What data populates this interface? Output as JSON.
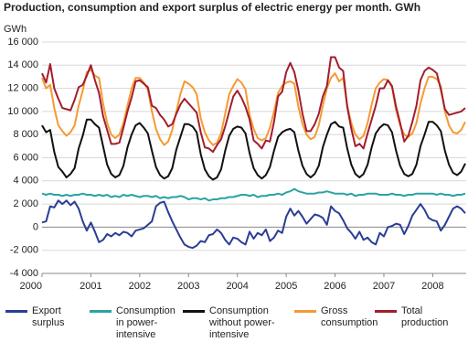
{
  "chart_data": {
    "type": "line",
    "title": "Production, consumption and export surplus of electric energy per month. GWh",
    "y_label": "GWh",
    "categories": [
      "2000",
      null,
      null,
      null,
      null,
      null,
      null,
      null,
      null,
      null,
      null,
      null,
      "2001",
      null,
      null,
      null,
      null,
      null,
      null,
      null,
      null,
      null,
      null,
      null,
      "2002",
      null,
      null,
      null,
      null,
      null,
      null,
      null,
      null,
      null,
      null,
      null,
      "2003",
      null,
      null,
      null,
      null,
      null,
      null,
      null,
      null,
      null,
      null,
      null,
      "2004",
      null,
      null,
      null,
      null,
      null,
      null,
      null,
      null,
      null,
      null,
      null,
      "2005",
      null,
      null,
      null,
      null,
      null,
      null,
      null,
      null,
      null,
      null,
      null,
      "2006",
      null,
      null,
      null,
      null,
      null,
      null,
      null,
      null,
      null,
      null,
      null,
      "2007",
      null,
      null,
      null,
      null,
      null,
      null,
      null,
      null,
      null,
      null,
      null,
      "2008",
      null,
      null,
      null,
      null,
      null,
      null,
      null,
      null
    ],
    "ylim": [
      -4000,
      16000
    ],
    "yticks": [
      {
        "value": -4000,
        "label": "-4 000"
      },
      {
        "value": -2000,
        "label": "-2 000"
      },
      0,
      {
        "value": 2000,
        "label": "2 000"
      },
      {
        "value": 4000,
        "label": "4 000"
      },
      {
        "value": 6000,
        "label": "6 000"
      },
      {
        "value": 8000,
        "label": "8 000"
      },
      {
        "value": 10000,
        "label": "10 000"
      },
      {
        "value": 12000,
        "label": "12 000"
      },
      {
        "value": 14000,
        "label": "14 000"
      },
      {
        "value": 16000,
        "label": "16 000"
      }
    ],
    "grid": true,
    "series": [
      {
        "name": "Export surplus",
        "color": "#2b3d94",
        "values": [
          400,
          500,
          1800,
          1700,
          2300,
          2000,
          2300,
          1900,
          2200,
          1600,
          500,
          -300,
          400,
          -400,
          -1300,
          -1100,
          -600,
          -800,
          -500,
          -700,
          -400,
          -500,
          -800,
          -300,
          -200,
          -100,
          200,
          500,
          1800,
          2100,
          2200,
          1300,
          500,
          -200,
          -900,
          -1500,
          -1700,
          -1800,
          -1600,
          -1200,
          -1300,
          -700,
          -600,
          -200,
          -500,
          -1100,
          -1500,
          -900,
          -1000,
          -1300,
          -1500,
          -400,
          -1000,
          -500,
          -700,
          -200,
          -1200,
          -900,
          -300,
          -500,
          900,
          1600,
          1000,
          1400,
          900,
          300,
          700,
          1100,
          1000,
          800,
          200,
          1800,
          1400,
          1200,
          600,
          -100,
          -500,
          -1000,
          -400,
          -1100,
          -900,
          -1300,
          -1500,
          -500,
          -800,
          0,
          100,
          300,
          200,
          -600,
          100,
          1000,
          1500,
          2000,
          1500,
          800,
          600,
          500,
          -300,
          200,
          900,
          1600,
          1800,
          1600,
          1200
        ]
      },
      {
        "name": "Consumption in power-intensive manufacturing",
        "color": "#2aa3a3",
        "values": [
          2900,
          2800,
          2900,
          2800,
          2800,
          2700,
          2800,
          2700,
          2800,
          2800,
          2900,
          2800,
          2800,
          2700,
          2800,
          2700,
          2800,
          2600,
          2700,
          2600,
          2800,
          2700,
          2800,
          2700,
          2600,
          2700,
          2700,
          2600,
          2700,
          2500,
          2600,
          2500,
          2600,
          2600,
          2700,
          2600,
          2400,
          2500,
          2500,
          2400,
          2500,
          2300,
          2400,
          2400,
          2500,
          2500,
          2600,
          2600,
          2700,
          2800,
          2800,
          2700,
          2800,
          2600,
          2700,
          2700,
          2800,
          2800,
          2900,
          2800,
          3000,
          3100,
          3300,
          3100,
          3000,
          2900,
          2900,
          2900,
          3000,
          3000,
          3100,
          3000,
          2900,
          2900,
          2900,
          2800,
          2900,
          2700,
          2800,
          2800,
          2900,
          2900,
          2900,
          2800,
          2800,
          2800,
          2900,
          2800,
          2800,
          2700,
          2800,
          2800,
          2900,
          2900,
          2900,
          2900,
          2900,
          2800,
          2900,
          2800,
          2800,
          2700,
          2800,
          2800,
          2900
        ]
      },
      {
        "name": "Consumption without power-intensive manufacturing",
        "color": "#111111",
        "values": [
          8800,
          8200,
          8400,
          6500,
          5200,
          4800,
          4300,
          4600,
          5100,
          6800,
          7900,
          9300,
          9300,
          8900,
          8600,
          7000,
          5400,
          4600,
          4300,
          4500,
          5300,
          6900,
          8000,
          8800,
          9000,
          8600,
          8100,
          6600,
          5200,
          4500,
          4200,
          4400,
          5100,
          6700,
          7800,
          8900,
          8900,
          8700,
          8200,
          6300,
          5000,
          4400,
          4100,
          4300,
          5000,
          6600,
          7900,
          8500,
          8700,
          8600,
          8100,
          6400,
          5100,
          4500,
          4200,
          4500,
          5200,
          6600,
          7800,
          8200,
          8400,
          8500,
          8200,
          6600,
          5300,
          4600,
          4300,
          4600,
          5300,
          6900,
          8000,
          8900,
          9100,
          8700,
          8600,
          6800,
          5400,
          4600,
          4300,
          4600,
          5400,
          6900,
          8100,
          8600,
          8900,
          8800,
          8200,
          6600,
          5300,
          4600,
          4400,
          4600,
          5400,
          7000,
          8000,
          9100,
          9100,
          8800,
          8300,
          6600,
          5400,
          4700,
          4500,
          4800,
          5500
        ]
      },
      {
        "name": "Gross consumption",
        "color": "#f59a32",
        "values": [
          12900,
          12000,
          12300,
          10300,
          8800,
          8300,
          7900,
          8200,
          8800,
          10500,
          11800,
          13400,
          13600,
          13100,
          12900,
          10700,
          9000,
          8000,
          7700,
          8000,
          9000,
          10500,
          12000,
          12900,
          12900,
          12500,
          11900,
          10000,
          8500,
          7600,
          7100,
          7400,
          8400,
          10000,
          11500,
          12600,
          12400,
          12100,
          11500,
          9400,
          8200,
          7500,
          7100,
          7300,
          8100,
          9800,
          11500,
          12200,
          12800,
          12500,
          11900,
          9700,
          8500,
          7700,
          7500,
          7700,
          8600,
          10000,
          11600,
          12200,
          12500,
          12600,
          12400,
          10400,
          8900,
          8000,
          7600,
          7800,
          8800,
          10500,
          12000,
          12900,
          13300,
          12600,
          12900,
          10500,
          9000,
          8000,
          7600,
          7900,
          9000,
          10600,
          12000,
          12500,
          12800,
          12700,
          12100,
          10100,
          8800,
          8000,
          7800,
          8100,
          9000,
          10700,
          12000,
          13000,
          13000,
          12800,
          12200,
          10000,
          8800,
          8200,
          8100,
          8400,
          9100
        ]
      },
      {
        "name": "Total production",
        "color": "#a31d2e",
        "values": [
          13300,
          12500,
          14100,
          12000,
          11100,
          10300,
          10200,
          10100,
          11000,
          12100,
          12300,
          13100,
          14000,
          12700,
          11600,
          9600,
          8400,
          7200,
          7200,
          7300,
          8600,
          10000,
          11200,
          12600,
          12700,
          12400,
          12100,
          10500,
          10300,
          9700,
          9300,
          8700,
          8900,
          9800,
          10600,
          11100,
          10700,
          10300,
          9900,
          8200,
          6900,
          6800,
          6500,
          7100,
          7600,
          8700,
          10000,
          11300,
          11800,
          11200,
          10400,
          9300,
          7500,
          7200,
          6800,
          7500,
          7400,
          9100,
          11300,
          11700,
          13400,
          14200,
          13400,
          11800,
          9800,
          8300,
          8300,
          8900,
          9800,
          11300,
          12200,
          14700,
          14700,
          13800,
          13500,
          10400,
          8500,
          7000,
          7200,
          6800,
          8100,
          9300,
          10500,
          12000,
          12000,
          12700,
          12200,
          10400,
          9000,
          7400,
          7900,
          9100,
          10500,
          12700,
          13500,
          13800,
          13600,
          13300,
          11900,
          10200,
          9700,
          9800,
          9900,
          10000,
          10300
        ]
      }
    ]
  }
}
